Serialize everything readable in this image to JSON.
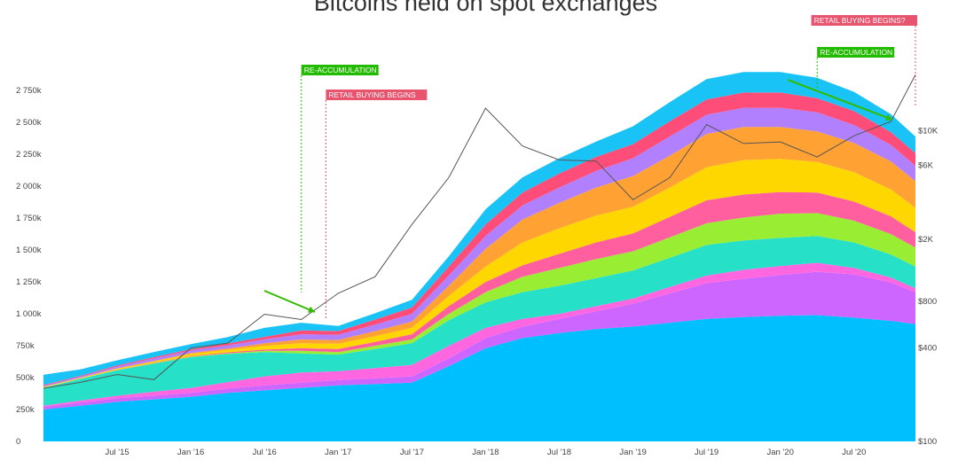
{
  "chart_data": {
    "type": "area",
    "title": "Bitcoins held on spot exchanges",
    "stacked": true,
    "y_left": {
      "ticks": [
        {
          "value": 0,
          "label": "0"
        },
        {
          "value": 250000,
          "label": "250k"
        },
        {
          "value": 500000,
          "label": "500k"
        },
        {
          "value": 750000,
          "label": "750k"
        },
        {
          "value": 1000000,
          "label": "1 000k"
        },
        {
          "value": 1250000,
          "label": "1 250k"
        },
        {
          "value": 1500000,
          "label": "1 500k"
        },
        {
          "value": 1750000,
          "label": "1 750k"
        },
        {
          "value": 2000000,
          "label": "2 000k"
        },
        {
          "value": 2250000,
          "label": "2 250k"
        },
        {
          "value": 2500000,
          "label": "2 500k"
        },
        {
          "value": 2750000,
          "label": "2 750k"
        }
      ],
      "ylim": [
        0,
        2800000
      ]
    },
    "y_right": {
      "scale": "log",
      "ticks": [
        {
          "value": 100,
          "label": "$100"
        },
        {
          "value": 400,
          "label": "$400"
        },
        {
          "value": 800,
          "label": "$800"
        },
        {
          "value": 2000,
          "label": "$2K"
        },
        {
          "value": 6000,
          "label": "$6K"
        },
        {
          "value": 10000,
          "label": "$10K"
        }
      ],
      "ylim": [
        100,
        20000
      ]
    },
    "x_ticks": [
      {
        "date": "2015-07",
        "label": "Jul '15"
      },
      {
        "date": "2016-01",
        "label": "Jan '16"
      },
      {
        "date": "2016-07",
        "label": "Jul '16"
      },
      {
        "date": "2017-01",
        "label": "Jan '17"
      },
      {
        "date": "2017-07",
        "label": "Jul '17"
      },
      {
        "date": "2018-01",
        "label": "Jan '18"
      },
      {
        "date": "2018-07",
        "label": "Jul '18"
      },
      {
        "date": "2019-01",
        "label": "Jan '19"
      },
      {
        "date": "2019-07",
        "label": "Jul '19"
      },
      {
        "date": "2020-01",
        "label": "Jan '20"
      },
      {
        "date": "2020-07",
        "label": "Jul '20"
      }
    ],
    "x_range": [
      "2015-01",
      "2020-12"
    ],
    "dates": [
      "2015-01",
      "2015-04",
      "2015-07",
      "2015-10",
      "2016-01",
      "2016-04",
      "2016-07",
      "2016-10",
      "2017-01",
      "2017-04",
      "2017-07",
      "2017-10",
      "2018-01",
      "2018-04",
      "2018-07",
      "2018-10",
      "2019-01",
      "2019-04",
      "2019-07",
      "2019-10",
      "2020-01",
      "2020-04",
      "2020-07",
      "2020-10",
      "2020-12"
    ],
    "series": [
      {
        "color": "#00bfff",
        "values": [
          250000,
          280000,
          310000,
          330000,
          350000,
          380000,
          400000,
          420000,
          440000,
          450000,
          460000,
          590000,
          730000,
          810000,
          850000,
          880000,
          900000,
          930000,
          960000,
          975000,
          985000,
          990000,
          970000,
          945000,
          920000
        ]
      },
      {
        "color": "#cc66ff",
        "values": [
          20000,
          25000,
          28000,
          30000,
          30000,
          35000,
          40000,
          40000,
          40000,
          45000,
          50000,
          60000,
          80000,
          90000,
          110000,
          140000,
          180000,
          230000,
          280000,
          300000,
          320000,
          340000,
          340000,
          300000,
          250000
        ]
      },
      {
        "color": "#ff66e0",
        "values": [
          10000,
          15000,
          20000,
          30000,
          40000,
          50000,
          70000,
          80000,
          70000,
          80000,
          90000,
          100000,
          80000,
          60000,
          40000,
          40000,
          40000,
          50000,
          60000,
          70000,
          70000,
          70000,
          50000,
          40000,
          30000
        ]
      },
      {
        "color": "#26e0c8",
        "values": [
          140000,
          170000,
          200000,
          220000,
          240000,
          220000,
          190000,
          150000,
          130000,
          150000,
          170000,
          200000,
          200000,
          210000,
          220000,
          220000,
          220000,
          230000,
          240000,
          230000,
          220000,
          210000,
          200000,
          180000,
          170000
        ]
      },
      {
        "color": "#99ee33",
        "values": [
          1000,
          1000,
          2000,
          3000,
          5000,
          5000,
          10000,
          20000,
          20000,
          25000,
          30000,
          50000,
          80000,
          120000,
          140000,
          150000,
          150000,
          160000,
          170000,
          180000,
          190000,
          180000,
          170000,
          160000,
          150000
        ]
      },
      {
        "color": "#ff5f9e",
        "values": [
          1000,
          1000,
          2000,
          3000,
          5000,
          8000,
          10000,
          20000,
          25000,
          30000,
          40000,
          60000,
          80000,
          90000,
          110000,
          130000,
          140000,
          160000,
          180000,
          180000,
          170000,
          160000,
          150000,
          140000,
          120000
        ]
      },
      {
        "color": "#ffd700",
        "values": [
          5000,
          5000,
          8000,
          10000,
          15000,
          20000,
          30000,
          40000,
          40000,
          45000,
          50000,
          80000,
          120000,
          180000,
          200000,
          210000,
          210000,
          230000,
          260000,
          270000,
          260000,
          240000,
          230000,
          210000,
          190000
        ]
      },
      {
        "color": "#ffa133",
        "values": [
          1000,
          2000,
          3000,
          5000,
          8000,
          10000,
          20000,
          30000,
          30000,
          40000,
          50000,
          80000,
          140000,
          180000,
          200000,
          220000,
          240000,
          250000,
          260000,
          260000,
          250000,
          240000,
          230000,
          220000,
          210000
        ]
      },
      {
        "color": "#b080ff",
        "values": [
          10000,
          10000,
          15000,
          20000,
          20000,
          25000,
          30000,
          40000,
          40000,
          50000,
          60000,
          80000,
          100000,
          110000,
          120000,
          130000,
          140000,
          150000,
          150000,
          150000,
          150000,
          150000,
          140000,
          130000,
          120000
        ]
      },
      {
        "color": "#ff4d7a",
        "values": [
          5000,
          5000,
          8000,
          10000,
          10000,
          15000,
          20000,
          30000,
          30000,
          40000,
          50000,
          70000,
          90000,
          100000,
          110000,
          110000,
          110000,
          120000,
          120000,
          120000,
          120000,
          110000,
          110000,
          100000,
          100000
        ]
      },
      {
        "color": "#19c3f5",
        "values": [
          80000,
          50000,
          40000,
          40000,
          40000,
          50000,
          70000,
          60000,
          40000,
          50000,
          60000,
          80000,
          120000,
          120000,
          120000,
          120000,
          140000,
          150000,
          160000,
          160000,
          160000,
          160000,
          150000,
          140000,
          130000
        ]
      }
    ],
    "price_series": {
      "color": "#555555",
      "values": [
        220,
        240,
        270,
        250,
        400,
        430,
        660,
        610,
        900,
        1150,
        2500,
        5000,
        14000,
        8000,
        6500,
        6400,
        3600,
        5000,
        11000,
        8300,
        8500,
        6800,
        9300,
        11500,
        23000
      ]
    },
    "annotations": [
      {
        "text": "RE-ACCUMULATION",
        "date": "2016-10",
        "color": "#22bb00"
      },
      {
        "text": "RETAIL BUYING BEGINS",
        "date": "2016-12",
        "color": "#e8536e"
      },
      {
        "text": "RE-ACCUMULATION",
        "date": "2020-04",
        "color": "#22bb00"
      },
      {
        "text": "RETAIL BUYING BEGINS?",
        "date": "2020-12",
        "color": "#e8536e"
      }
    ]
  }
}
